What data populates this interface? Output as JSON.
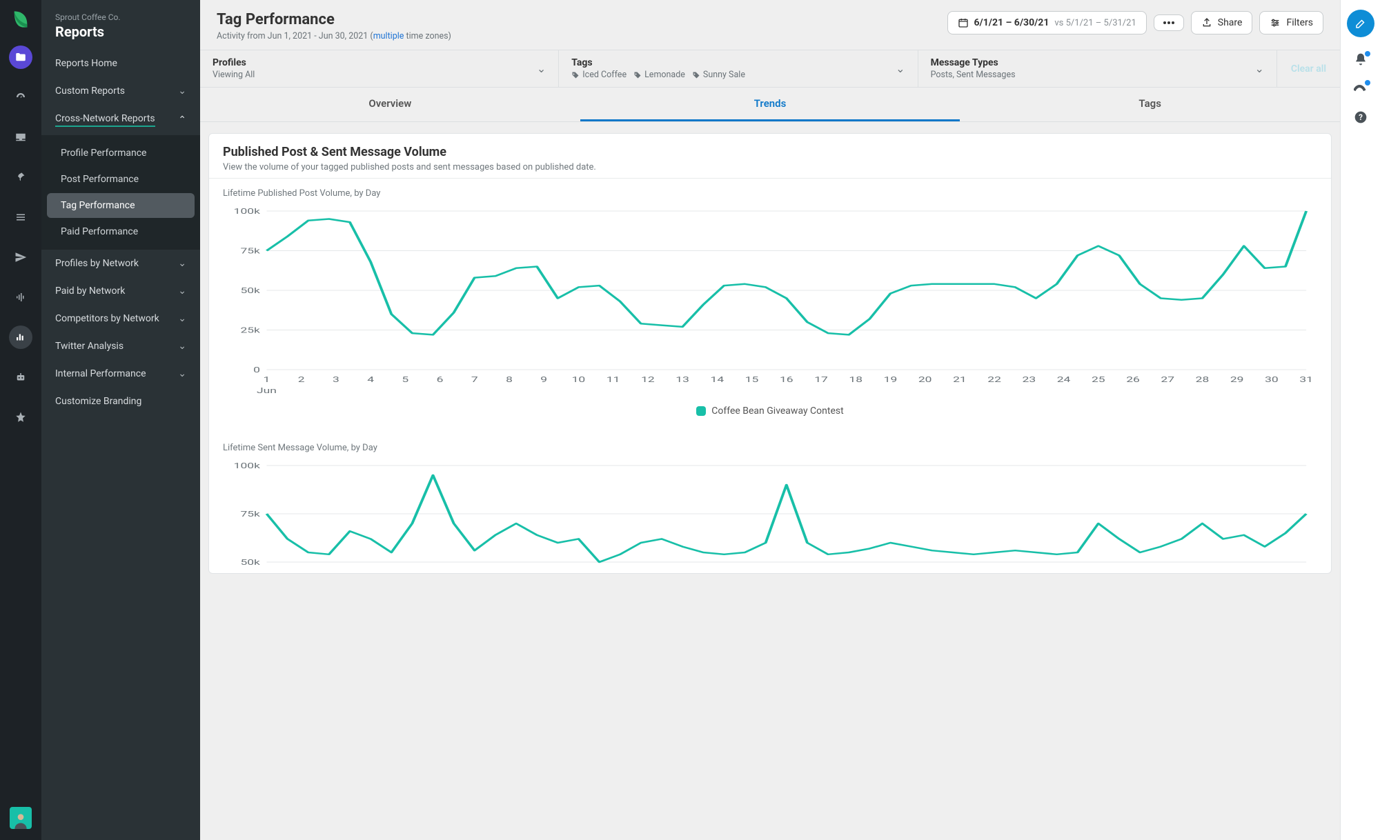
{
  "company": "Sprout Coffee Co.",
  "section": "Reports",
  "sidebar": {
    "home": "Reports Home",
    "custom": "Custom Reports",
    "cross": "Cross-Network Reports",
    "sub": {
      "profile": "Profile Performance",
      "post": "Post Performance",
      "tag": "Tag Performance",
      "paid": "Paid Performance"
    },
    "profilesBy": "Profiles by Network",
    "paidBy": "Paid by Network",
    "competitors": "Competitors by Network",
    "twitter": "Twitter Analysis",
    "internal": "Internal Performance",
    "branding": "Customize Branding"
  },
  "page": {
    "title": "Tag Performance",
    "subtitle_prefix": "Activity from Jun 1, 2021 - Jun 30, 2021 (",
    "subtitle_link": "multiple",
    "subtitle_suffix": " time zones)"
  },
  "daterange": {
    "main": "6/1/21 – 6/30/21",
    "vs": "vs 5/1/21 – 5/31/21"
  },
  "actions": {
    "share": "Share",
    "filters": "Filters"
  },
  "filters": {
    "profiles": {
      "title": "Profiles",
      "sub": "Viewing All"
    },
    "tags": {
      "title": "Tags",
      "items": [
        "Iced Coffee",
        "Lemonade",
        "Sunny Sale"
      ]
    },
    "messages": {
      "title": "Message Types",
      "sub": "Posts, Sent Messages"
    },
    "clear": "Clear all"
  },
  "tabs": {
    "overview": "Overview",
    "trends": "Trends",
    "tags": "Tags"
  },
  "card": {
    "title": "Published Post & Sent Message Volume",
    "desc": "View the volume of your tagged published posts and sent messages based on published date."
  },
  "legend": {
    "series1": "Coffee Bean Giveaway Contest"
  },
  "chart1": {
    "title": "Lifetime Published Post Volume, by Day",
    "color": "#18bfa8",
    "grid_color": "#e4e7e9",
    "axis_color": "#6b7378",
    "ylabels": [
      "100k",
      "75k",
      "50k",
      "25k",
      "0"
    ],
    "ymax": 100000,
    "xlabels": [
      "1",
      "2",
      "3",
      "4",
      "5",
      "6",
      "7",
      "8",
      "9",
      "10",
      "11",
      "12",
      "13",
      "14",
      "15",
      "16",
      "17",
      "18",
      "19",
      "20",
      "21",
      "22",
      "23",
      "24",
      "25",
      "26",
      "27",
      "28",
      "29",
      "30",
      "31"
    ],
    "xaxis_label": "Jun",
    "values": [
      75000,
      84000,
      94000,
      95000,
      93000,
      68000,
      35000,
      23000,
      22000,
      36000,
      58000,
      59000,
      64000,
      65000,
      45000,
      52000,
      53000,
      43000,
      29000,
      28000,
      27000,
      41000,
      53000,
      54000,
      52000,
      45000,
      30000,
      23000,
      22000,
      32000,
      48000,
      53000,
      54000,
      54000,
      54000,
      54000,
      52000,
      45000,
      54000,
      72000,
      78000,
      72000,
      54000,
      45000,
      44000,
      45000,
      60000,
      78000,
      64000,
      65000,
      100000
    ]
  },
  "chart2": {
    "title": "Lifetime Sent Message Volume, by Day",
    "color": "#18bfa8",
    "grid_color": "#e4e7e9",
    "axis_color": "#6b7378",
    "ylabels": [
      "100k",
      "75k",
      "50k"
    ],
    "ymin": 50000,
    "ymax": 100000,
    "values": [
      75000,
      62000,
      55000,
      54000,
      66000,
      62000,
      55000,
      70000,
      95000,
      70000,
      56000,
      64000,
      70000,
      64000,
      60000,
      62000,
      50000,
      54000,
      60000,
      62000,
      58000,
      55000,
      54000,
      55000,
      60000,
      90000,
      60000,
      54000,
      55000,
      57000,
      60000,
      58000,
      56000,
      55000,
      54000,
      55000,
      56000,
      55000,
      54000,
      55000,
      70000,
      62000,
      55000,
      58000,
      62000,
      70000,
      62000,
      64000,
      58000,
      65000,
      75000
    ]
  }
}
